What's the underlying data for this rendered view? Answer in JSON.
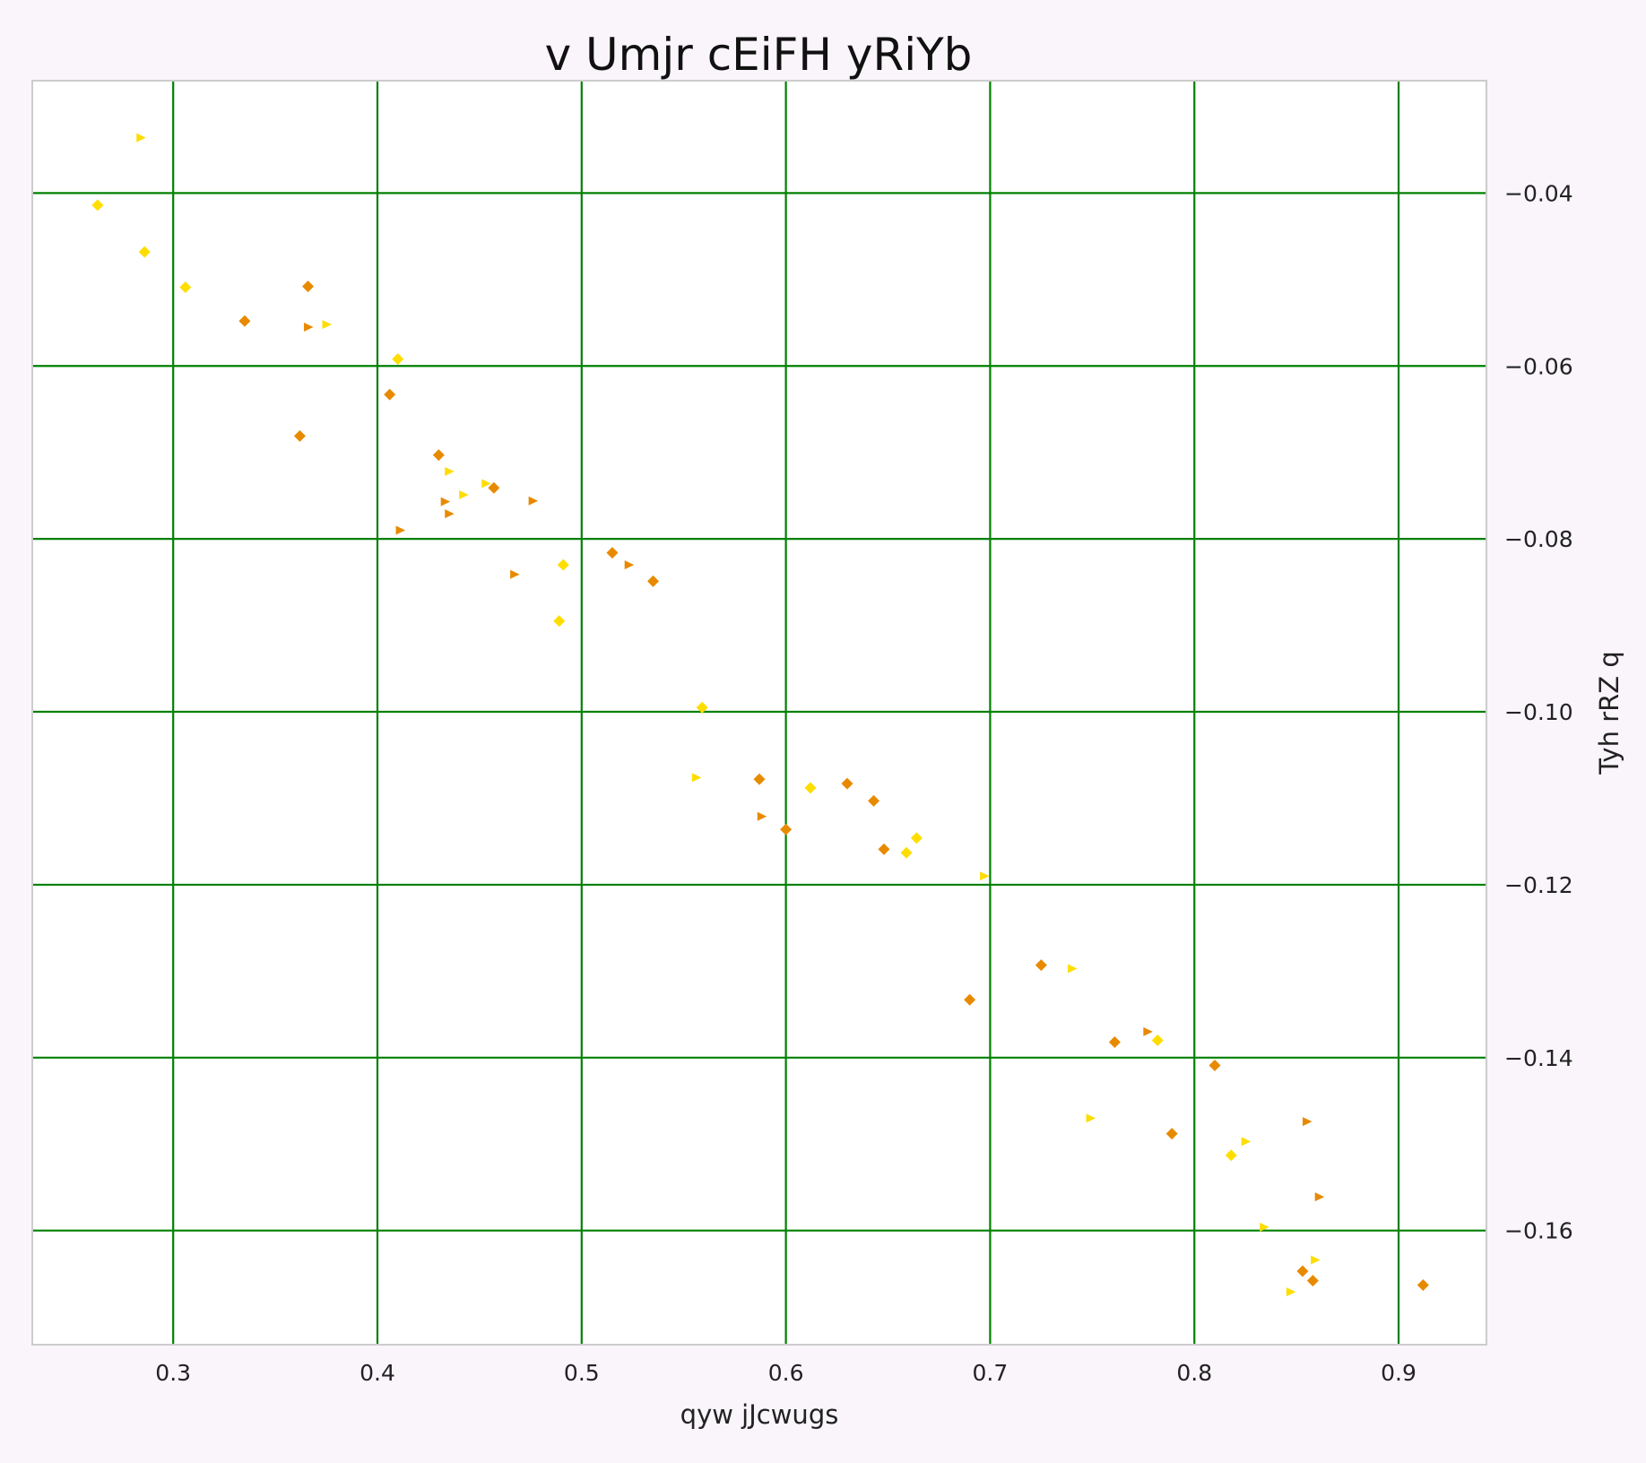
{
  "chart_data": {
    "type": "scatter",
    "title": "v Umjr cEiFH  yRiYb",
    "xlabel": "qyw  jJcwugs",
    "ylabel": "Tyh rRZ q",
    "xlim": [
      0.231,
      0.943
    ],
    "ylim": [
      -0.1732,
      -0.027
    ],
    "x_ticks": [
      0.3,
      0.4,
      0.5,
      0.6,
      0.7,
      0.8,
      0.9
    ],
    "x_tick_labels": [
      "0.3",
      "0.4",
      "0.5",
      "0.6",
      "0.7",
      "0.8",
      "0.9"
    ],
    "y_ticks": [
      -0.04,
      -0.06,
      -0.08,
      -0.1,
      -0.12,
      -0.14,
      -0.16
    ],
    "y_tick_labels": [
      "−0.04",
      "−0.06",
      "−0.08",
      "−0.10",
      "−0.12",
      "−0.14",
      "−0.16"
    ],
    "y_axis_position": "right",
    "grid": true,
    "colors": {
      "background": "#f9f5fb",
      "plot_background": "#ffffff",
      "grid": "#008000",
      "frame": "#cccccc",
      "series_a": "#ffdd00",
      "series_b": "#e88a00"
    },
    "series": [
      {
        "marker": "diamond",
        "color": "#ffdd00",
        "points": [
          [
            0.263,
            -0.0414
          ],
          [
            0.286,
            -0.0468
          ],
          [
            0.306,
            -0.0509
          ],
          [
            0.41,
            -0.0592
          ],
          [
            0.491,
            -0.083
          ],
          [
            0.489,
            -0.0895
          ],
          [
            0.559,
            -0.0995
          ],
          [
            0.612,
            -0.1088
          ],
          [
            0.664,
            -0.1146
          ],
          [
            0.659,
            -0.1163
          ],
          [
            0.782,
            -0.138
          ],
          [
            0.818,
            -0.1513
          ]
        ]
      },
      {
        "marker": "diamond",
        "color": "#e88a00",
        "points": [
          [
            0.366,
            -0.0508
          ],
          [
            0.335,
            -0.0548
          ],
          [
            0.406,
            -0.0633
          ],
          [
            0.362,
            -0.0681
          ],
          [
            0.43,
            -0.0703
          ],
          [
            0.457,
            -0.0741
          ],
          [
            0.515,
            -0.0816
          ],
          [
            0.535,
            -0.0849
          ],
          [
            0.587,
            -0.1078
          ],
          [
            0.63,
            -0.1083
          ],
          [
            0.643,
            -0.1103
          ],
          [
            0.6,
            -0.1136
          ],
          [
            0.648,
            -0.1159
          ],
          [
            0.69,
            -0.1333
          ],
          [
            0.725,
            -0.1293
          ],
          [
            0.761,
            -0.1382
          ],
          [
            0.81,
            -0.1409
          ],
          [
            0.789,
            -0.1488
          ],
          [
            0.853,
            -0.1647
          ],
          [
            0.858,
            -0.1658
          ],
          [
            0.912,
            -0.1663
          ]
        ]
      },
      {
        "marker": "triangle-right",
        "color": "#ffdd00",
        "points": [
          [
            0.284,
            -0.0336
          ],
          [
            0.375,
            -0.0552
          ],
          [
            0.435,
            -0.0722
          ],
          [
            0.442,
            -0.0749
          ],
          [
            0.453,
            -0.0736
          ],
          [
            0.556,
            -0.1076
          ],
          [
            0.697,
            -0.119
          ],
          [
            0.74,
            -0.1297
          ],
          [
            0.749,
            -0.147
          ],
          [
            0.825,
            -0.1497
          ],
          [
            0.834,
            -0.1596
          ],
          [
            0.847,
            -0.1671
          ],
          [
            0.859,
            -0.1634
          ]
        ]
      },
      {
        "marker": "triangle-right",
        "color": "#e88a00",
        "points": [
          [
            0.366,
            -0.0555
          ],
          [
            0.411,
            -0.079
          ],
          [
            0.433,
            -0.0757
          ],
          [
            0.435,
            -0.0771
          ],
          [
            0.476,
            -0.0756
          ],
          [
            0.467,
            -0.0841
          ],
          [
            0.523,
            -0.083
          ],
          [
            0.588,
            -0.1121
          ],
          [
            0.777,
            -0.137
          ],
          [
            0.855,
            -0.1474
          ],
          [
            0.861,
            -0.1561
          ]
        ]
      }
    ]
  }
}
